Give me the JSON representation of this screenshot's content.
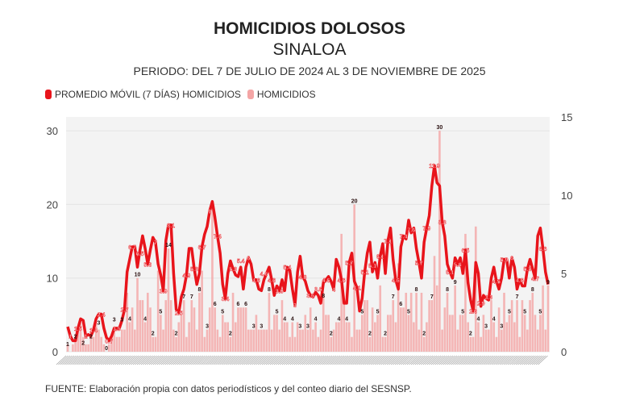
{
  "chart_data": {
    "type": "bar+line",
    "title": "HOMICIDIOS DOLOSOS",
    "subtitle": "SINALOA",
    "period": "PERIODO: DEL 7 DE JULIO DE 2024 AL 3 DE NOVIEMBRE DE 2025",
    "legend": [
      "PROMEDIO MÓVIL (7 DÍAS) HOMICIDIOS",
      "HOMICIDIOS"
    ],
    "legend_placement": "top-left",
    "source": "FUENTE: Elaboración propia con datos periodísticos y del conteo diario del SESNSP.",
    "y_left": {
      "ticks": [
        "0",
        "10",
        "20",
        "30"
      ],
      "range": [
        0,
        31
      ]
    },
    "y_right": {
      "ticks": [
        "0",
        "5",
        "10",
        "15"
      ],
      "range": [
        0,
        15
      ]
    },
    "x_range": [
      "7 de julio de 2024",
      "3 de noviembre de 2025"
    ],
    "grid": true,
    "colors": {
      "moving_average": "#e8141b",
      "homicides": "#f4a5a5",
      "plot_bg": "#f3f3f3"
    },
    "moving_average": [
      1.6,
      1,
      0.7,
      0.7,
      1.5,
      2.1,
      2,
      1,
      1.1,
      1,
      1.4,
      2.1,
      2.4,
      2.4,
      1.5,
      0.9,
      0.7,
      1.0,
      1.5,
      1.5,
      1.5,
      2,
      2.7,
      5.1,
      5.9,
      6.7,
      6.7,
      5.4,
      6.5,
      7.4,
      6.6,
      5.6,
      6.5,
      7.3,
      7.0,
      5.6,
      4.9,
      3.9,
      7.1,
      8.1,
      8.1,
      5,
      2.7,
      2.5,
      3.5,
      4.0,
      4.9,
      6.6,
      6.6,
      5.3,
      4.3,
      5.0,
      6.7,
      7.5,
      8,
      9,
      9.6,
      8.6,
      7.4,
      6.3,
      4.3,
      3.4,
      5.0,
      5.8,
      5.3,
      4.9,
      4.8,
      5.4,
      4.0,
      5.4,
      6,
      5.6,
      4.6,
      4.6,
      4.0,
      3.9,
      4.6,
      5.0,
      5.4,
      4.6,
      3.6,
      4.2,
      3.9,
      4.6,
      3.9,
      5.4,
      5.2,
      4.0,
      3.0,
      5.1,
      6.1,
      4.8,
      4.5,
      3.9,
      3.6,
      3.5,
      3.8,
      3.6,
      3.1,
      4.4,
      4.6,
      4.8,
      4.5,
      4.0,
      5.9,
      5.4,
      4.6,
      3.1,
      3.1,
      5.7,
      6.3,
      4.5,
      4.1,
      2.6,
      3.4,
      5.1,
      6.3,
      7.0,
      5.1,
      5.7,
      4.7,
      6.1,
      6.9,
      5.0,
      7.1,
      7.9,
      5.9,
      4.6,
      4.0,
      6.7,
      7.4,
      7.2,
      8.4,
      7.6,
      7.9,
      6.6,
      5.7,
      4.7,
      7,
      7.9,
      8.7,
      10.6,
      11.9,
      10.8,
      10.6,
      8.3,
      7.4,
      5.6,
      5.1,
      4.7,
      6.0,
      5.6,
      6.0,
      5.0,
      6.5,
      4.4,
      3.3,
      2.6,
      5.7,
      5,
      2.9,
      3.6,
      3.4,
      3.3,
      4.7,
      5.4,
      4.5,
      4.0,
      4.7,
      5.9,
      5.9,
      4.7,
      6.0,
      5.4,
      4.0,
      4.6,
      4.2,
      4.2,
      5.3,
      5.9,
      5.3,
      4.7,
      7.4,
      7.9,
      6.6,
      5.1,
      4.3
    ],
    "homicides": [
      1,
      0,
      1,
      2,
      3,
      4,
      2,
      1,
      1,
      2,
      2,
      4,
      3,
      2,
      1,
      0,
      1,
      2,
      3,
      2,
      2,
      3,
      3,
      8,
      4,
      6,
      3,
      10,
      7,
      7,
      4,
      8,
      6,
      2,
      2,
      11,
      5,
      3,
      7,
      14,
      7,
      3,
      2,
      4,
      5,
      7,
      2,
      4,
      7,
      6,
      3,
      8,
      11,
      2,
      3,
      6,
      20,
      6,
      3,
      2,
      5,
      4,
      4,
      2,
      8,
      4,
      6,
      6,
      6,
      6,
      3,
      3,
      3,
      5,
      3,
      3,
      3,
      3,
      8,
      3,
      5,
      5,
      3,
      7,
      4,
      4,
      2,
      4,
      2,
      4,
      3,
      3,
      5,
      3,
      6,
      3,
      4,
      2,
      3,
      8,
      5,
      5,
      2,
      3,
      4,
      4,
      16,
      7,
      4,
      4,
      2,
      20,
      3,
      3,
      5,
      7,
      7,
      2,
      6,
      4,
      5,
      9,
      2,
      2,
      5,
      5,
      7,
      4,
      12,
      6,
      6,
      8,
      5,
      8,
      4,
      8,
      3,
      8,
      2,
      4,
      7,
      7,
      13,
      9,
      30,
      3,
      6,
      8,
      5,
      5,
      9,
      3,
      5,
      5,
      16,
      4,
      2,
      2,
      17,
      4,
      2,
      5,
      3,
      3,
      7,
      4,
      2,
      6,
      3,
      8,
      4,
      5,
      7,
      4,
      7,
      2,
      7,
      5,
      3,
      7,
      8,
      5,
      3,
      5,
      9,
      3,
      9,
      5,
      3,
      7,
      5,
      8,
      3
    ]
  }
}
